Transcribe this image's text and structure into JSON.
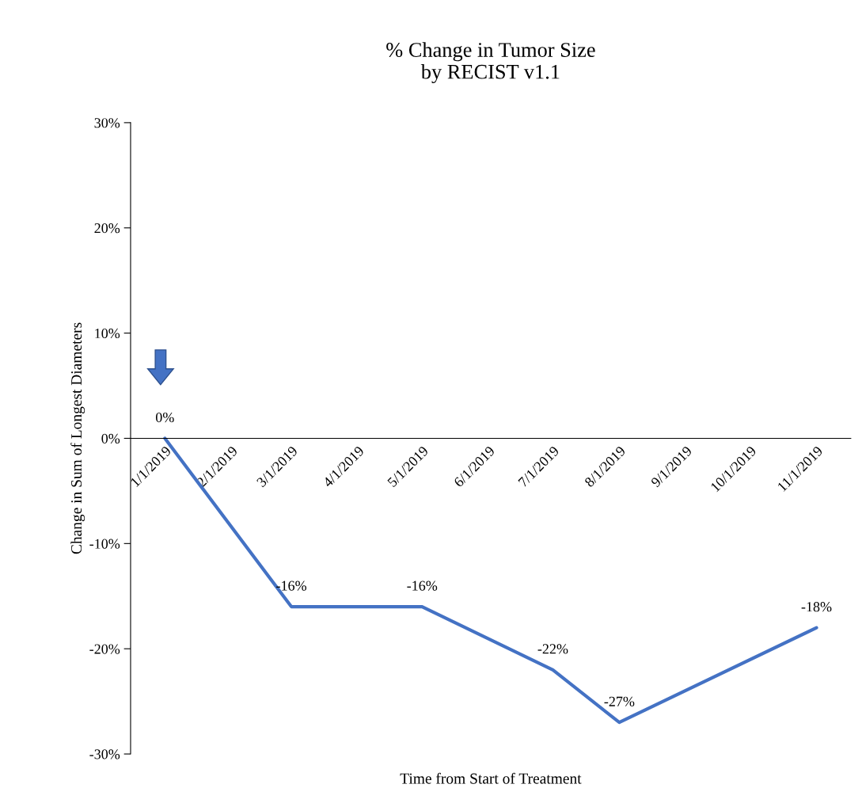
{
  "chart_data": {
    "type": "line",
    "title": "% Change in Tumor Size\nby RECIST v1.1",
    "xlabel": "Time from Start of Treatment",
    "ylabel": "Change in Sum of Longest Diameters",
    "x": [
      "2019-01-01",
      "2019-03-01",
      "2019-05-01",
      "2019-07-01",
      "2019-08-01",
      "2019-11-01"
    ],
    "series": [
      {
        "color": "#4472c4",
        "values": [
          0,
          -16,
          -16,
          -22,
          -27,
          -18
        ],
        "value_labels": [
          "0%",
          "-16%",
          "-16%",
          "-22%",
          "-27%",
          "-18%"
        ]
      }
    ],
    "xlim": [
      "2018-12-16",
      "2019-11-17"
    ],
    "xticks": [
      {
        "value": "2019-01-01",
        "label": "1/1/2019"
      },
      {
        "value": "2019-02-01",
        "label": "2/1/2019"
      },
      {
        "value": "2019-03-01",
        "label": "3/1/2019"
      },
      {
        "value": "2019-04-01",
        "label": "4/1/2019"
      },
      {
        "value": "2019-05-01",
        "label": "5/1/2019"
      },
      {
        "value": "2019-06-01",
        "label": "6/1/2019"
      },
      {
        "value": "2019-07-01",
        "label": "7/1/2019"
      },
      {
        "value": "2019-08-01",
        "label": "8/1/2019"
      },
      {
        "value": "2019-09-01",
        "label": "9/1/2019"
      },
      {
        "value": "2019-10-01",
        "label": "10/1/2019"
      },
      {
        "value": "2019-11-01",
        "label": "11/1/2019"
      }
    ],
    "ylim": [
      -30,
      30
    ],
    "yticks": [
      {
        "value": -30,
        "label": "-30%"
      },
      {
        "value": -20,
        "label": "-20%"
      },
      {
        "value": -10,
        "label": "-10%"
      },
      {
        "value": 0,
        "label": "0%"
      },
      {
        "value": 10,
        "label": "10%"
      },
      {
        "value": 20,
        "label": "20%"
      },
      {
        "value": 30,
        "label": "30%"
      }
    ],
    "grid": false,
    "legend": false,
    "marker": "none",
    "line_style": "solid"
  }
}
